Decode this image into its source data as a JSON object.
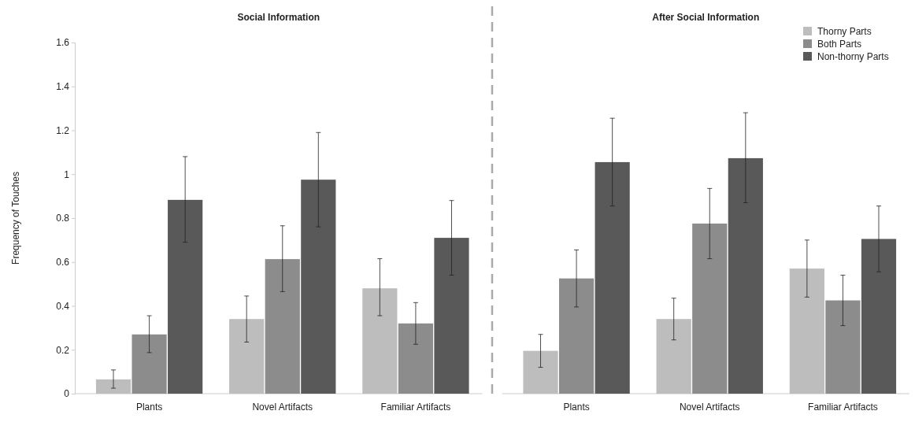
{
  "chart_data": [
    {
      "type": "bar",
      "title": "Social Information",
      "ylabel": "Frequency of Touches",
      "categories": [
        "Plants",
        "Novel Artifacts",
        "Familiar Artifacts"
      ],
      "ylim": [
        0,
        1.6
      ],
      "yticks": [
        0,
        0.2,
        0.4,
        0.6,
        0.8,
        1,
        1.2,
        1.4,
        1.6
      ],
      "legend": false,
      "series": [
        {
          "color": "#bdbdbd",
          "values": [
            0.065,
            0.34,
            0.48
          ],
          "errors": [
            [
              0.025,
              0.108
            ],
            [
              0.235,
              0.445
            ],
            [
              0.355,
              0.615
            ]
          ]
        },
        {
          "color": "#8c8c8c",
          "values": [
            0.27,
            0.613,
            0.32
          ],
          "errors": [
            [
              0.187,
              0.355
            ],
            [
              0.465,
              0.765
            ],
            [
              0.225,
              0.415
            ]
          ]
        },
        {
          "color": "#595959",
          "values": [
            0.883,
            0.975,
            0.71
          ],
          "errors": [
            [
              0.69,
              1.08
            ],
            [
              0.76,
              1.19
            ],
            [
              0.54,
              0.88
            ]
          ]
        }
      ]
    },
    {
      "type": "bar",
      "title": "After Social Information",
      "categories": [
        "Plants",
        "Novel Artifacts",
        "Familiar Artifacts"
      ],
      "ylim": [
        0,
        1.6
      ],
      "tick_labels": "x",
      "legend": "top right",
      "series": [
        {
          "name": "Thorny Parts",
          "color": "#bdbdbd",
          "values": [
            0.195,
            0.34,
            0.57
          ],
          "errors": [
            [
              0.12,
              0.27
            ],
            [
              0.245,
              0.435
            ],
            [
              0.44,
              0.7
            ]
          ]
        },
        {
          "name": "Both Parts",
          "color": "#8c8c8c",
          "values": [
            0.525,
            0.775,
            0.425
          ],
          "errors": [
            [
              0.395,
              0.655
            ],
            [
              0.615,
              0.935
            ],
            [
              0.31,
              0.54
            ]
          ]
        },
        {
          "name": "Non-thorny Parts",
          "color": "#595959",
          "values": [
            1.055,
            1.073,
            0.705
          ],
          "errors": [
            [
              0.855,
              1.255
            ],
            [
              0.87,
              1.28
            ],
            [
              0.555,
              0.855
            ]
          ]
        }
      ]
    }
  ]
}
